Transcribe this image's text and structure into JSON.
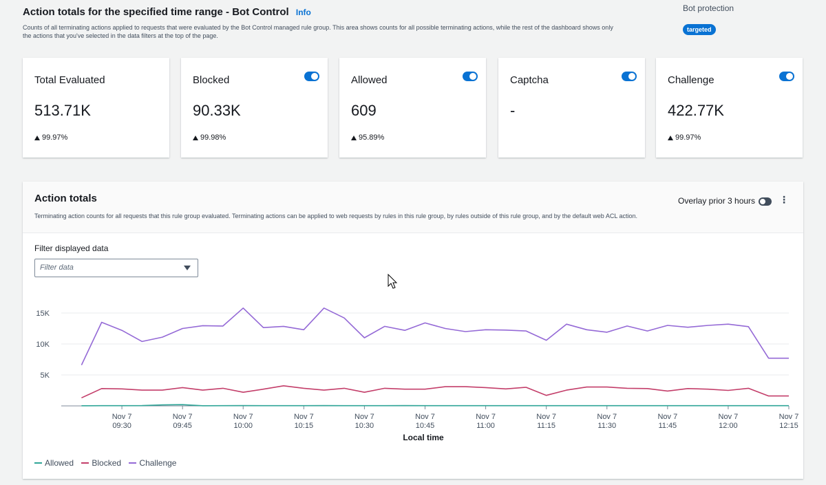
{
  "header": {
    "title": "Action totals for the specified time range - Bot Control",
    "info": "Info",
    "description": "Counts of all terminating actions applied to requests that were evaluated by the Bot Control managed rule group. This area shows counts for all possible terminating actions, while the rest of the dashboard shows only the actions that you've selected in the data filters at the top of the page.",
    "bot_protection_label": "Bot protection",
    "badge": "targeted"
  },
  "cards": [
    {
      "title": "Total Evaluated",
      "value": "513.71K",
      "delta": "99.97%",
      "toggle": false
    },
    {
      "title": "Blocked",
      "value": "90.33K",
      "delta": "99.98%",
      "toggle": true
    },
    {
      "title": "Allowed",
      "value": "609",
      "delta": "95.89%",
      "toggle": true
    },
    {
      "title": "Captcha",
      "value": "-",
      "delta": "",
      "toggle": true
    },
    {
      "title": "Challenge",
      "value": "422.77K",
      "delta": "99.97%",
      "toggle": true
    }
  ],
  "panel": {
    "title": "Action totals",
    "description": "Terminating action counts for all requests that this rule group evaluated. Terminating actions can be applied to web requests by rules in this rule group, by rules outside of this rule group, and by the default web ACL action.",
    "overlay_label": "Overlay prior 3 hours",
    "more_icon": "⋮",
    "filter_label": "Filter displayed data",
    "filter_placeholder": "Filter data"
  },
  "colors": {
    "allowed": "#2ea597",
    "blocked": "#c33d69",
    "challenge": "#9469d6"
  },
  "chart_data": {
    "type": "line",
    "xlabel": "Local time",
    "ylabel": "",
    "ylim": [
      0,
      16000
    ],
    "yticks": [
      "5K",
      "10K",
      "15K"
    ],
    "ytick_values": [
      5000,
      10000,
      15000
    ],
    "xticks": [
      {
        "date": "Nov 7",
        "time": "09:30",
        "min": 15
      },
      {
        "date": "Nov 7",
        "time": "09:45",
        "min": 30
      },
      {
        "date": "Nov 7",
        "time": "10:00",
        "min": 45
      },
      {
        "date": "Nov 7",
        "time": "10:15",
        "min": 60
      },
      {
        "date": "Nov 7",
        "time": "10:30",
        "min": 75
      },
      {
        "date": "Nov 7",
        "time": "10:45",
        "min": 90
      },
      {
        "date": "Nov 7",
        "time": "11:00",
        "min": 105
      },
      {
        "date": "Nov 7",
        "time": "11:15",
        "min": 120
      },
      {
        "date": "Nov 7",
        "time": "11:30",
        "min": 135
      },
      {
        "date": "Nov 7",
        "time": "11:45",
        "min": 150
      },
      {
        "date": "Nov 7",
        "time": "12:00",
        "min": 165
      },
      {
        "date": "Nov 7",
        "time": "12:15",
        "min": 180
      }
    ],
    "xlim": [
      0,
      180
    ],
    "x": [
      5,
      10,
      15,
      20,
      25,
      30,
      35,
      40,
      45,
      50,
      55,
      60,
      65,
      70,
      75,
      80,
      85,
      90,
      95,
      100,
      105,
      110,
      115,
      120,
      125,
      130,
      135,
      140,
      145,
      150,
      155,
      160,
      165,
      170,
      175,
      180
    ],
    "series": [
      {
        "name": "Allowed",
        "values": [
          20,
          30,
          30,
          40,
          150,
          200,
          20,
          30,
          40,
          30,
          30,
          30,
          50,
          30,
          30,
          30,
          40,
          30,
          30,
          30,
          30,
          30,
          30,
          30,
          30,
          30,
          30,
          30,
          30,
          30,
          30,
          30,
          30,
          30,
          30,
          30
        ]
      },
      {
        "name": "Blocked",
        "values": [
          1300,
          2800,
          2750,
          2550,
          2550,
          2950,
          2550,
          2850,
          2200,
          2700,
          3250,
          2850,
          2550,
          2850,
          2200,
          2850,
          2700,
          2700,
          3100,
          3100,
          2950,
          2750,
          3000,
          1700,
          2550,
          3050,
          3050,
          2850,
          2800,
          2400,
          2800,
          2700,
          2500,
          2850,
          1600,
          1600
        ]
      },
      {
        "name": "Challenge",
        "values": [
          6600,
          13500,
          12200,
          10400,
          11100,
          12500,
          12950,
          12900,
          15800,
          12650,
          12850,
          12300,
          15800,
          14200,
          11000,
          12850,
          12200,
          13400,
          12500,
          12000,
          12300,
          12250,
          12100,
          10600,
          13200,
          12300,
          11900,
          12900,
          12100,
          13000,
          12700,
          13000,
          13200,
          12800,
          7700,
          7700
        ]
      }
    ]
  }
}
